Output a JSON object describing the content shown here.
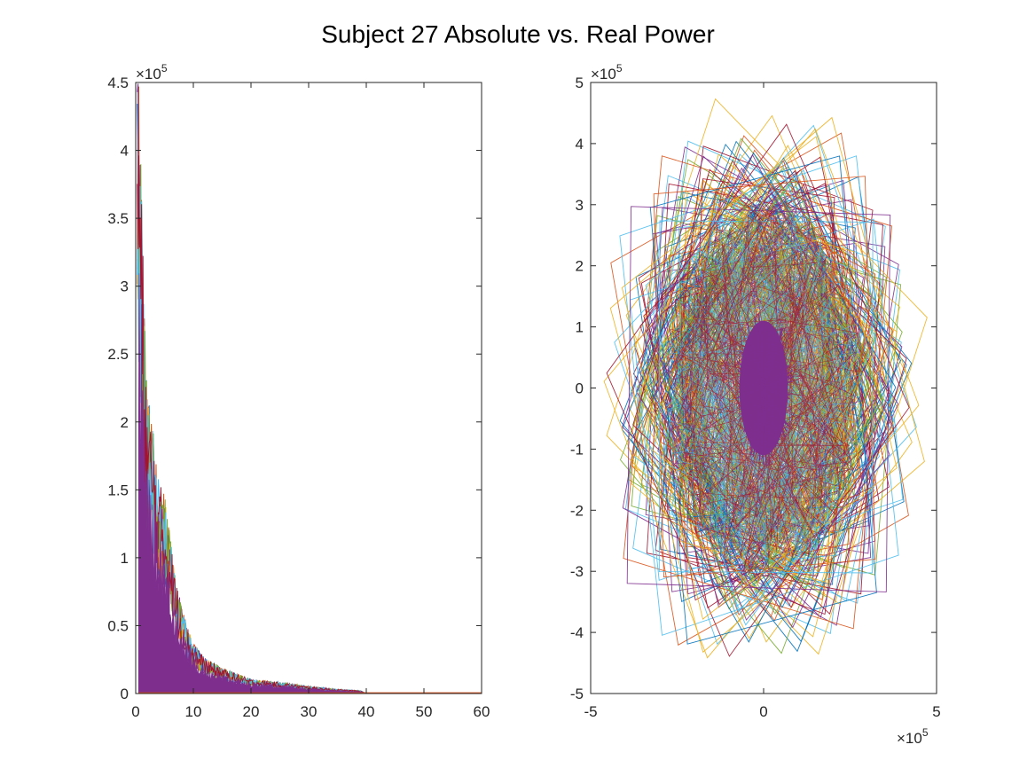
{
  "figure": {
    "title": "Subject 27 Absolute vs. Real Power"
  },
  "colors": {
    "series": [
      "#0072BD",
      "#D95319",
      "#EDB120",
      "#7E2F8E",
      "#77AC30",
      "#4DBEEE",
      "#A2142F"
    ],
    "axis": "#262626",
    "dominant_fill": "#7E2F8E"
  },
  "chart_data": [
    {
      "type": "area",
      "title": "",
      "xlabel": "",
      "ylabel": "",
      "xlim": [
        0,
        60
      ],
      "ylim": [
        0,
        450000
      ],
      "y_exponent_label": "×10",
      "y_exponent_power": "5",
      "xticks": [
        0,
        10,
        20,
        30,
        40,
        50,
        60
      ],
      "xtick_labels": [
        "0",
        "10",
        "20",
        "30",
        "40",
        "50",
        "60"
      ],
      "yticks": [
        0,
        50000,
        100000,
        150000,
        200000,
        250000,
        300000,
        350000,
        400000,
        450000
      ],
      "ytick_labels": [
        "0",
        "0.5",
        "1",
        "1.5",
        "2",
        "2.5",
        "3",
        "3.5",
        "4",
        "4.5"
      ],
      "envelope": {
        "x": [
          0.5,
          1,
          1.5,
          2,
          2.5,
          3,
          4,
          5,
          6,
          7,
          8,
          10,
          12,
          15,
          20,
          25,
          30,
          35,
          39,
          40,
          60
        ],
        "y": [
          440000,
          360000,
          270000,
          210000,
          200000,
          185000,
          150000,
          140000,
          110000,
          80000,
          60000,
          35000,
          25000,
          18000,
          10000,
          8000,
          5000,
          3000,
          2000,
          0,
          0
        ]
      },
      "grid": false
    },
    {
      "type": "line",
      "title": "",
      "xlabel": "",
      "ylabel": "",
      "xlim": [
        -500000,
        500000
      ],
      "ylim": [
        -500000,
        500000
      ],
      "x_exponent_label": "×10",
      "x_exponent_power": "5",
      "y_exponent_label": "×10",
      "y_exponent_power": "5",
      "xticks": [
        -500000,
        0,
        500000
      ],
      "xtick_labels": [
        "-5",
        "0",
        "5"
      ],
      "yticks": [
        -500000,
        -400000,
        -300000,
        -200000,
        -100000,
        0,
        100000,
        200000,
        300000,
        400000,
        500000
      ],
      "ytick_labels": [
        "-5",
        "-4",
        "-3",
        "-2",
        "-1",
        "0",
        "1",
        "2",
        "3",
        "4",
        "5"
      ],
      "cloud": {
        "x_extent": [
          -420000,
          430000
        ],
        "y_extent": [
          -440000,
          420000
        ]
      },
      "grid": false
    }
  ]
}
